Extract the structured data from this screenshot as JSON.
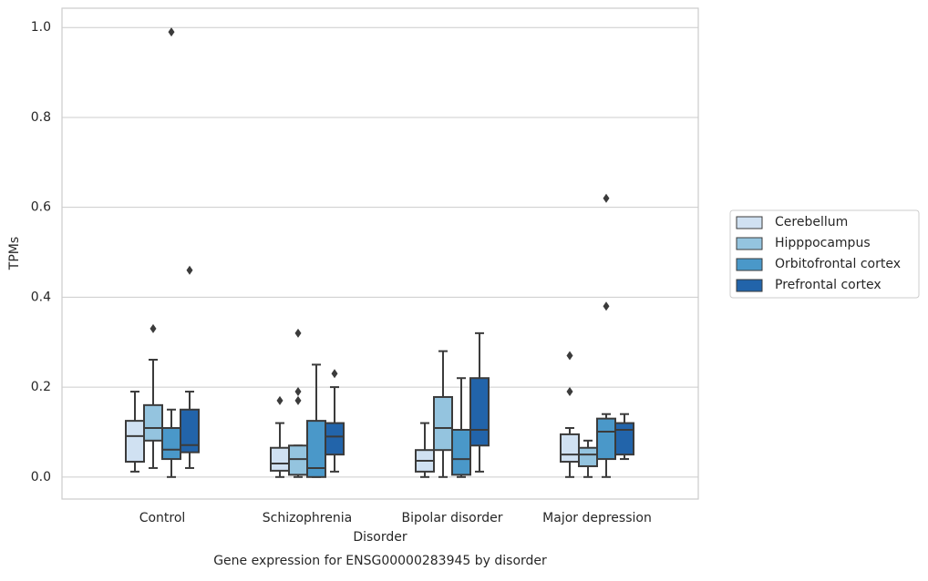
{
  "chart_data": {
    "type": "box",
    "title": "Gene expression for ENSG00000283945 by disorder",
    "x_label": "Disorder",
    "y_label": "TPMs",
    "categories": [
      "Control",
      "Schizophrenia",
      "Bipolar disorder",
      "Major depression"
    ],
    "ylim": [
      -0.049,
      1.043
    ],
    "yticks": [
      {
        "value": 0,
        "label": "0.0"
      },
      0.2,
      0.4,
      0.6,
      0.8,
      {
        "value": 1,
        "label": "1.0"
      }
    ],
    "grid": true,
    "legend": "right",
    "series": [
      {
        "name": "Cerebellum",
        "color": "#d0e1f2",
        "values": [
          {
            "whislo": 0.012,
            "q1": 0.034,
            "med": 0.091,
            "q3": 0.125,
            "whishi": 0.19,
            "fliers": []
          },
          {
            "whislo": 0,
            "q1": 0.014,
            "med": 0.03,
            "q3": 0.065,
            "whishi": 0.12,
            "fliers": [
              0.17
            ]
          },
          {
            "whislo": 0,
            "q1": 0.012,
            "med": 0.036,
            "q3": 0.06,
            "whishi": 0.12,
            "fliers": []
          },
          {
            "whislo": 0,
            "q1": 0.034,
            "med": 0.05,
            "q3": 0.095,
            "whishi": 0.109,
            "fliers": [
              0.27,
              0.19
            ]
          }
        ]
      },
      {
        "name": "Hipppocampus",
        "color": "#94c4df",
        "values": [
          {
            "whislo": 0.02,
            "q1": 0.081,
            "med": 0.109,
            "q3": 0.16,
            "whishi": 0.261,
            "fliers": [
              0.33
            ]
          },
          {
            "whislo": 0,
            "q1": 0.005,
            "med": 0.04,
            "q3": 0.07,
            "whishi": 0.07,
            "fliers": [
              0.19,
              0.17,
              0.32
            ]
          },
          {
            "whislo": 0,
            "q1": 0.06,
            "med": 0.109,
            "q3": 0.178,
            "whishi": 0.28,
            "fliers": []
          },
          {
            "whislo": 0,
            "q1": 0.024,
            "med": 0.05,
            "q3": 0.065,
            "whishi": 0.081,
            "fliers": []
          }
        ]
      },
      {
        "name": "Orbitofrontal cortex",
        "color": "#4a98c9",
        "values": [
          {
            "whislo": 0,
            "q1": 0.04,
            "med": 0.061,
            "q3": 0.109,
            "whishi": 0.15,
            "fliers": [
              0.99
            ]
          },
          {
            "whislo": 0,
            "q1": 0,
            "med": 0.02,
            "q3": 0.125,
            "whishi": 0.25,
            "fliers": []
          },
          {
            "whislo": 0,
            "q1": 0.005,
            "med": 0.04,
            "q3": 0.105,
            "whishi": 0.22,
            "fliers": []
          },
          {
            "whislo": 0,
            "q1": 0.04,
            "med": 0.101,
            "q3": 0.13,
            "whishi": 0.14,
            "fliers": [
              0.62,
              0.38
            ]
          }
        ]
      },
      {
        "name": "Prefrontal cortex",
        "color": "#2264aa",
        "values": [
          {
            "whislo": 0.02,
            "q1": 0.055,
            "med": 0.071,
            "q3": 0.15,
            "whishi": 0.19,
            "fliers": [
              0.46
            ]
          },
          {
            "whislo": 0.012,
            "q1": 0.05,
            "med": 0.09,
            "q3": 0.12,
            "whishi": 0.2,
            "fliers": [
              0.23
            ]
          },
          {
            "whislo": 0.012,
            "q1": 0.07,
            "med": 0.105,
            "q3": 0.22,
            "whishi": 0.32,
            "fliers": []
          },
          {
            "whislo": 0.04,
            "q1": 0.05,
            "med": 0.105,
            "q3": 0.12,
            "whishi": 0.14,
            "fliers": []
          }
        ]
      }
    ]
  }
}
